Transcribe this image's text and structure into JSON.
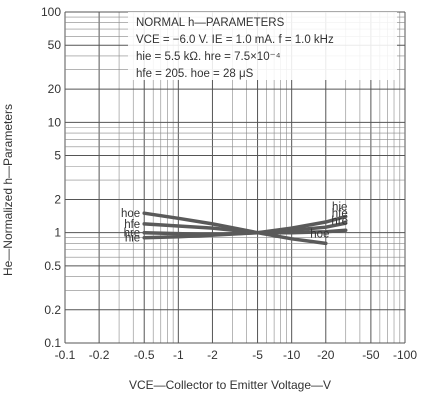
{
  "chart_data": {
    "type": "line",
    "xscale": "log",
    "yscale": "log",
    "xlim": [
      -0.1,
      -100
    ],
    "ylim": [
      0.1,
      100
    ],
    "xticks": [
      "-0.1",
      "-0.2",
      "-0.5",
      "-1",
      "-2",
      "-5",
      "-10",
      "-20",
      "-50",
      "-100"
    ],
    "yticks": [
      "0.1",
      "0.2",
      "0.5",
      "1",
      "2",
      "5",
      "10",
      "20",
      "50",
      "100"
    ],
    "xlabel": "VCE—Collector to Emitter Voltage—V",
    "ylabel": "He—Normalized h—Parameters",
    "grid": true,
    "annotation": {
      "title": "NORMAL h—PARAMETERS",
      "lines": [
        "VCE = −6.0 V. IE = 1.0 mA. f = 1.0 kHz",
        "hie = 5.5 kΩ. hre = 7.5×10⁻⁴",
        "hfe = 205. hoe = 28 μS"
      ]
    },
    "series": [
      {
        "name": "hoe",
        "x": [
          -0.5,
          -1,
          -2,
          -5,
          -10,
          -20
        ],
        "y": [
          1.5,
          1.35,
          1.2,
          1.0,
          0.88,
          0.8
        ]
      },
      {
        "name": "hie",
        "x": [
          -0.5,
          -1,
          -2,
          -5,
          -10,
          -20,
          -30
        ],
        "y": [
          0.9,
          0.92,
          0.95,
          1.0,
          1.1,
          1.25,
          1.4
        ]
      },
      {
        "name": "hfe",
        "x": [
          -0.5,
          -1,
          -2,
          -5,
          -10,
          -20,
          -30
        ],
        "y": [
          1.2,
          1.15,
          1.1,
          1.0,
          1.05,
          1.12,
          1.22
        ]
      },
      {
        "name": "hre",
        "x": [
          -0.5,
          -1,
          -2,
          -5,
          -10,
          -20,
          -30
        ],
        "y": [
          1.0,
          0.98,
          0.96,
          1.0,
          1.0,
          1.02,
          1.05
        ]
      }
    ]
  }
}
